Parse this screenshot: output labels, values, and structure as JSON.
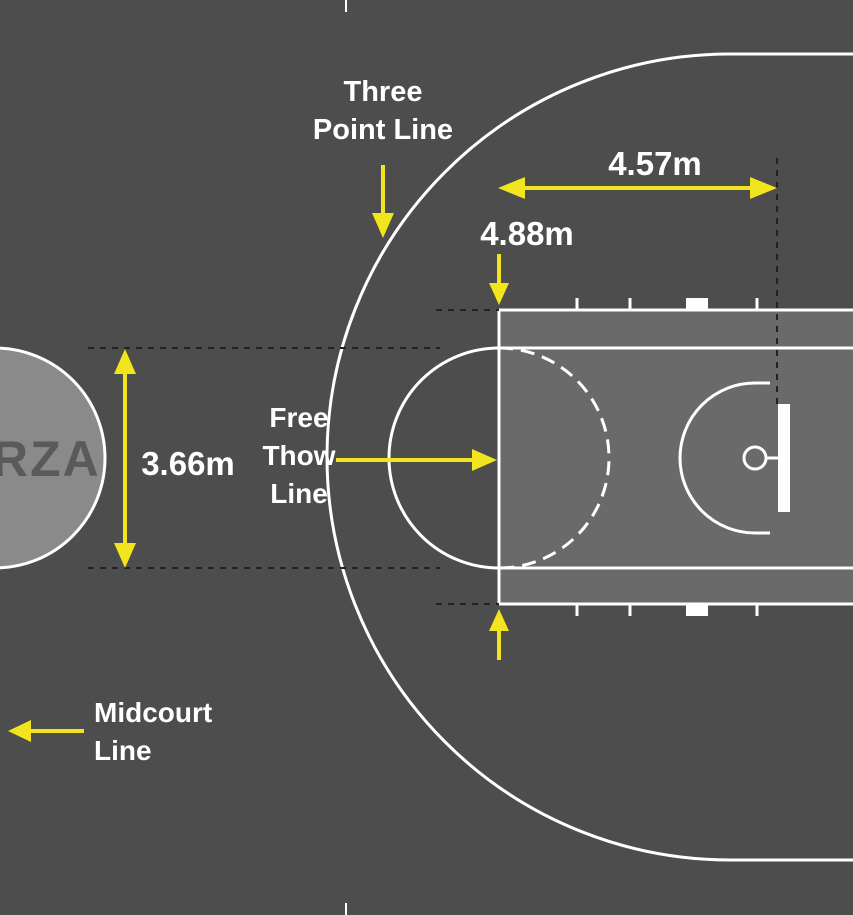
{
  "colors": {
    "court": "#4d4d4d",
    "key": "#6a6a6a",
    "circle_fill": "#8a8a8a",
    "lines": "#ffffff",
    "arrows": "#f2e51e",
    "dashed_guides": "#222222",
    "logo": "#5a5a5a"
  },
  "logo": {
    "text": "RZA"
  },
  "labels": {
    "three_point": [
      "Three",
      "Point Line"
    ],
    "free_throw": [
      "Free",
      "Thow",
      "Line"
    ],
    "midcourt": [
      "Midcourt",
      "Line"
    ]
  },
  "dimensions": {
    "key_width": "4.88m",
    "free_throw_to_basket": "4.57m",
    "circle_diameter": "3.66m"
  },
  "icons": [
    "arrow-down-icon",
    "arrow-right-icon",
    "arrow-left-icon",
    "arrow-up-icon",
    "double-arrow-icon"
  ]
}
